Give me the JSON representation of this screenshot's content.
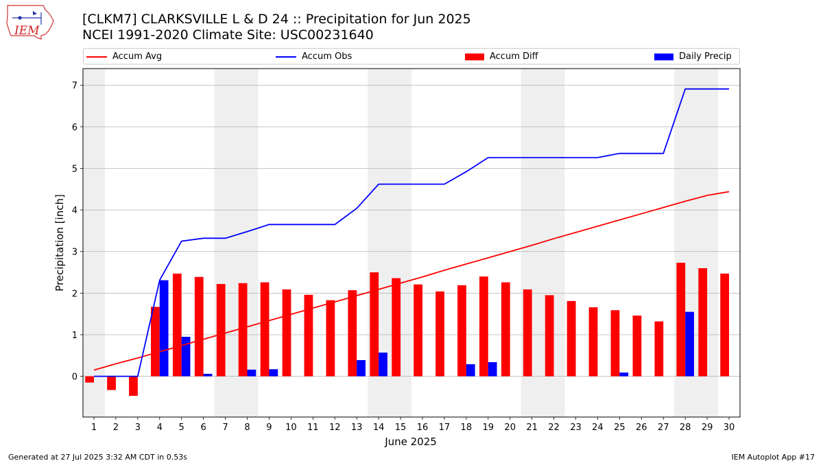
{
  "header": {
    "logo_text": "IEM",
    "title_line1": "[CLKM7] CLARKSVILLE L & D 24 :: Precipitation for Jun 2025",
    "title_line2": "NCEI 1991-2020 Climate Site: USC00231640"
  },
  "footer": {
    "left": "Generated at 27 Jul 2025 3:32 AM CDT in 0.53s",
    "right": "IEM Autoplot App #17"
  },
  "chart_data": {
    "type": "bar",
    "xlabel": "June 2025",
    "ylabel": "Precipitation [inch]",
    "x": [
      1,
      2,
      3,
      4,
      5,
      6,
      7,
      8,
      9,
      10,
      11,
      12,
      13,
      14,
      15,
      16,
      17,
      18,
      19,
      20,
      21,
      22,
      23,
      24,
      25,
      26,
      27,
      28,
      29,
      30
    ],
    "xlim": [
      0.5,
      30.5
    ],
    "ylim": [
      -0.98,
      7.4
    ],
    "yticks": [
      0,
      1,
      2,
      3,
      4,
      5,
      6,
      7
    ],
    "grid": "horizontal",
    "legend_position": "top",
    "weekend_shading": [
      [
        0.5,
        1.5
      ],
      [
        6.5,
        8.5
      ],
      [
        13.5,
        15.5
      ],
      [
        20.5,
        22.5
      ],
      [
        27.5,
        29.5
      ]
    ],
    "series": [
      {
        "name": "Accum Avg",
        "kind": "line",
        "color": "#ff0000",
        "values": [
          0.15,
          0.3,
          0.44,
          0.59,
          0.74,
          0.89,
          1.04,
          1.19,
          1.34,
          1.49,
          1.64,
          1.79,
          1.94,
          2.09,
          2.24,
          2.39,
          2.55,
          2.7,
          2.85,
          3.0,
          3.15,
          3.31,
          3.46,
          3.61,
          3.76,
          3.91,
          4.06,
          4.21,
          4.35,
          4.44
        ]
      },
      {
        "name": "Accum Obs",
        "kind": "line",
        "color": "#0000ff",
        "values": [
          0,
          0,
          0,
          2.31,
          3.25,
          3.32,
          3.32,
          3.48,
          3.65,
          3.65,
          3.65,
          3.65,
          4.04,
          4.62,
          4.62,
          4.62,
          4.62,
          4.92,
          5.26,
          5.26,
          5.26,
          5.26,
          5.26,
          5.26,
          5.36,
          5.36,
          5.36,
          6.91,
          6.91,
          6.91
        ]
      },
      {
        "name": "Accum Diff",
        "kind": "bar",
        "color": "#ff0000",
        "values": [
          -0.15,
          -0.33,
          -0.47,
          1.67,
          2.47,
          2.39,
          2.22,
          2.24,
          2.26,
          2.09,
          1.96,
          1.83,
          2.07,
          2.5,
          2.36,
          2.21,
          2.04,
          2.19,
          2.4,
          2.26,
          2.09,
          1.95,
          1.81,
          1.66,
          1.59,
          1.46,
          1.32,
          2.73,
          2.6,
          2.47
        ]
      },
      {
        "name": "Daily Precip",
        "kind": "bar",
        "color": "#0000ff",
        "values": [
          0,
          0,
          0,
          2.31,
          0.95,
          0.06,
          0,
          0.16,
          0.17,
          0,
          0,
          0,
          0.39,
          0.57,
          0,
          0,
          0,
          0.29,
          0.34,
          0,
          0,
          0,
          0,
          0,
          0.09,
          0,
          0,
          1.55,
          0,
          0
        ]
      }
    ]
  }
}
